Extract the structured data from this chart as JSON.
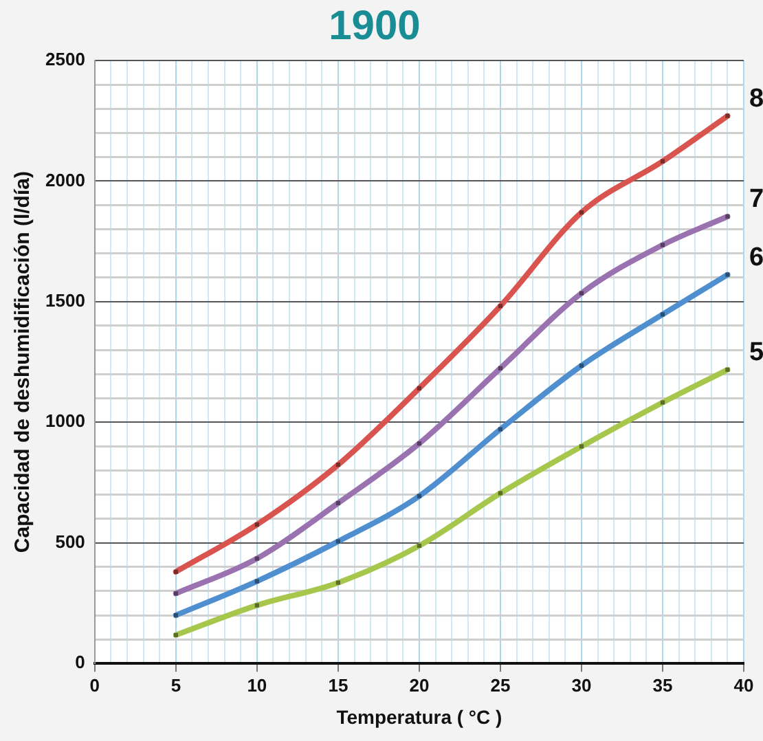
{
  "chart_data": {
    "type": "line",
    "title": "1900",
    "xlabel": "Temperatura ( °C )",
    "ylabel": "Capacidad de deshumidificación (l/día)",
    "x": [
      5,
      10,
      15,
      20,
      25,
      30,
      35,
      39
    ],
    "series": [
      {
        "name": "8",
        "color": "#d9534f",
        "values": [
          380,
          576,
          824,
          1141,
          1482,
          1870,
          2082,
          2270
        ]
      },
      {
        "name": "7",
        "color": "#9b72b0",
        "values": [
          290,
          435,
          665,
          912,
          1224,
          1535,
          1735,
          1853
        ]
      },
      {
        "name": "6",
        "color": "#4f8fcf",
        "values": [
          200,
          341,
          506,
          694,
          971,
          1235,
          1447,
          1612
        ]
      },
      {
        "name": "5",
        "color": "#a6c64c",
        "values": [
          118,
          241,
          335,
          488,
          706,
          900,
          1082,
          1218
        ]
      }
    ],
    "xlim": [
      0,
      40
    ],
    "xticks": [
      0,
      {
        "value": 1,
        "label": null
      },
      {
        "value": 2,
        "label": null
      },
      {
        "value": 3,
        "label": null
      },
      {
        "value": 4,
        "label": null
      },
      5,
      {
        "value": 6,
        "label": null
      },
      {
        "value": 7,
        "label": null
      },
      {
        "value": 8,
        "label": null
      },
      {
        "value": 9,
        "label": null
      },
      10,
      {
        "value": 11,
        "label": null
      },
      {
        "value": 12,
        "label": null
      },
      {
        "value": 13,
        "label": null
      },
      {
        "value": 14,
        "label": null
      },
      15,
      {
        "value": 16,
        "label": null
      },
      {
        "value": 17,
        "label": null
      },
      {
        "value": 18,
        "label": null
      },
      {
        "value": 19,
        "label": null
      },
      20,
      {
        "value": 21,
        "label": null
      },
      {
        "value": 22,
        "label": null
      },
      {
        "value": 23,
        "label": null
      },
      {
        "value": 24,
        "label": null
      },
      25,
      {
        "value": 26,
        "label": null
      },
      {
        "value": 27,
        "label": null
      },
      {
        "value": 28,
        "label": null
      },
      {
        "value": 29,
        "label": null
      },
      30,
      {
        "value": 31,
        "label": null
      },
      {
        "value": 32,
        "label": null
      },
      {
        "value": 33,
        "label": null
      },
      {
        "value": 34,
        "label": null
      },
      35,
      {
        "value": 36,
        "label": null
      },
      {
        "value": 37,
        "label": null
      },
      {
        "value": 38,
        "label": null
      },
      {
        "value": 39,
        "label": null
      },
      40
    ],
    "ylim": [
      0,
      2500
    ],
    "yticks": [
      0,
      {
        "value": 100,
        "label": null
      },
      {
        "value": 200,
        "label": null
      },
      {
        "value": 300,
        "label": null
      },
      {
        "value": 400,
        "label": null
      },
      500,
      {
        "value": 600,
        "label": null
      },
      {
        "value": 700,
        "label": null
      },
      {
        "value": 800,
        "label": null
      },
      {
        "value": 900,
        "label": null
      },
      1000,
      {
        "value": 1100,
        "label": null
      },
      {
        "value": 1200,
        "label": null
      },
      {
        "value": 1300,
        "label": null
      },
      {
        "value": 1400,
        "label": null
      },
      1500,
      {
        "value": 1600,
        "label": null
      },
      {
        "value": 1700,
        "label": null
      },
      {
        "value": 1800,
        "label": null
      },
      {
        "value": 1900,
        "label": null
      },
      2000,
      {
        "value": 2100,
        "label": null
      },
      {
        "value": 2200,
        "label": null
      },
      {
        "value": 2300,
        "label": null
      },
      {
        "value": 2400,
        "label": null
      },
      2500
    ],
    "grid": true,
    "legend": false,
    "marker": "square",
    "line_style": "solid"
  }
}
